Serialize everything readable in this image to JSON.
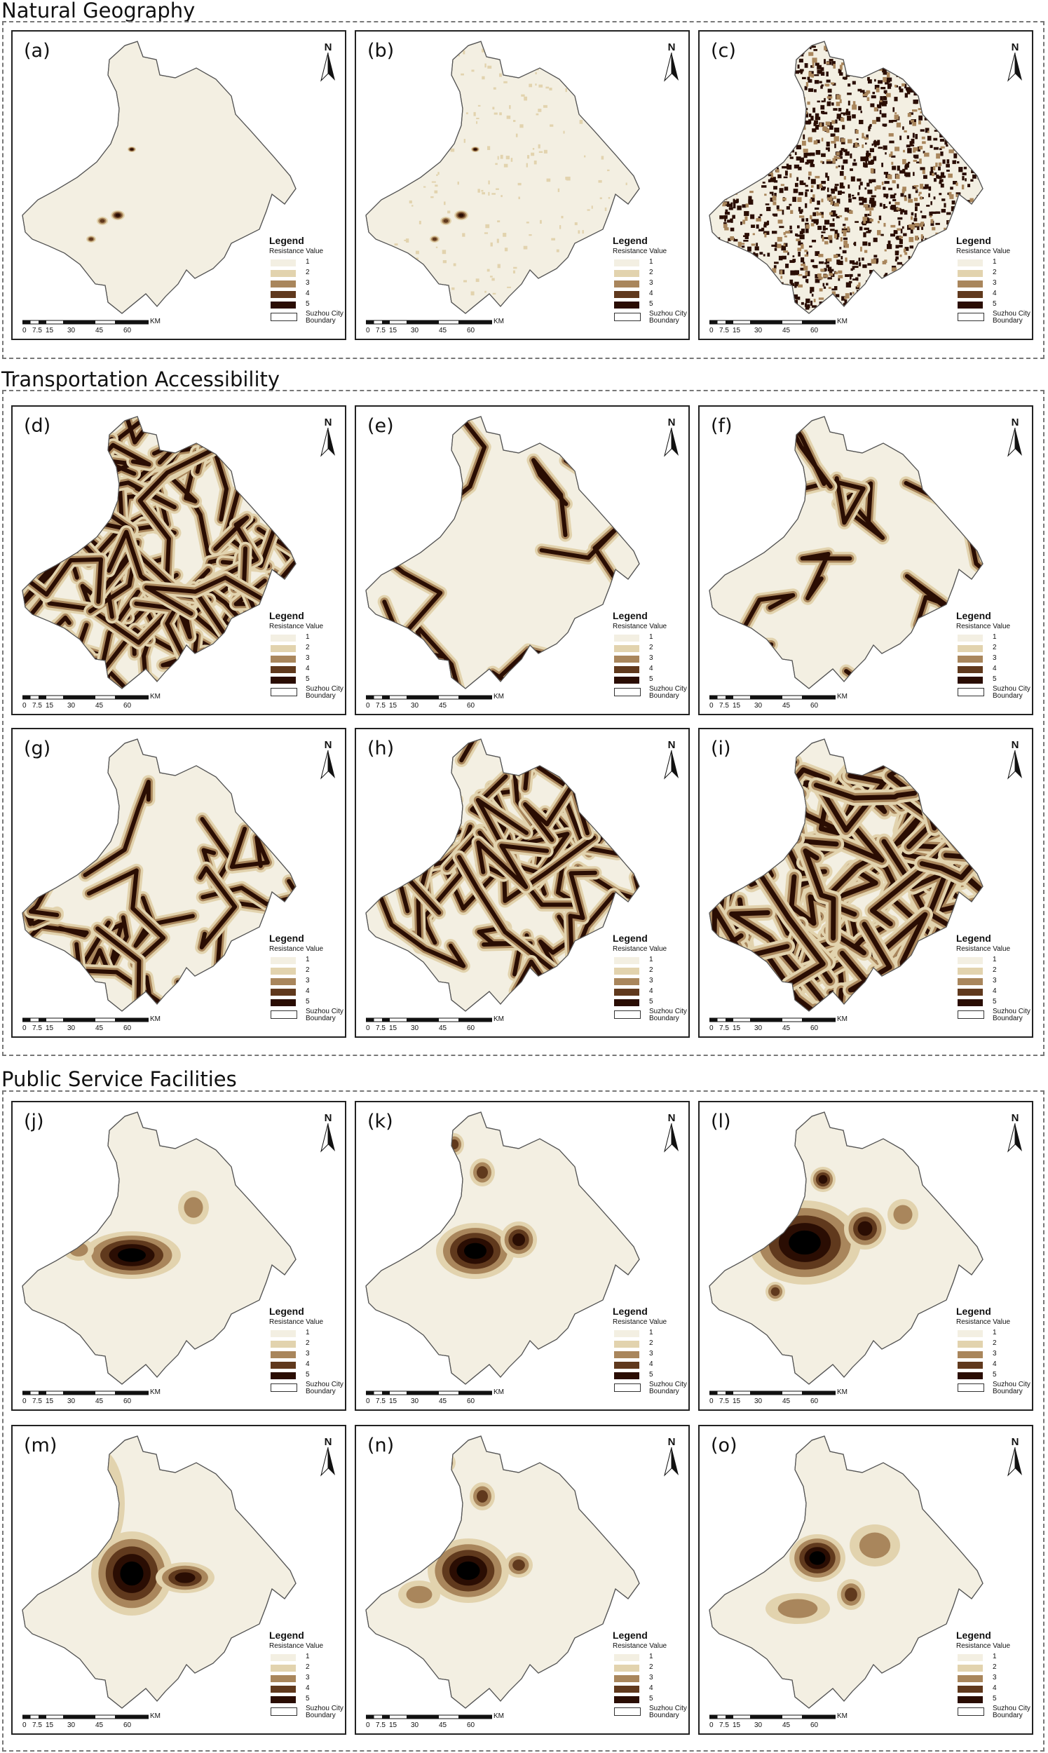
{
  "sections": [
    {
      "title": "Natural Geography",
      "panels": [
        "(a)",
        "(b)",
        "(c)"
      ]
    },
    {
      "title": "Transportation Accessibility",
      "panels": [
        "(d)",
        "(e)",
        "(f)",
        "(g)",
        "(h)",
        "(i)"
      ]
    },
    {
      "title": "Public Service Facilities",
      "panels": [
        "(j)",
        "(k)",
        "(l)",
        "(m)",
        "(n)",
        "(o)"
      ]
    }
  ],
  "legend": {
    "title": "Legend",
    "subtitle": "Resistance Value",
    "classes": [
      "1",
      "2",
      "3",
      "4",
      "5"
    ],
    "boundary_label": "Suzhou City Boundary",
    "colors": [
      "#f3efe2",
      "#e2d3ae",
      "#a9865c",
      "#60391d",
      "#2a0d03"
    ]
  },
  "north_arrow": "N",
  "scale_bar": {
    "ticks": [
      "0",
      "7.5",
      "15",
      "30",
      "45",
      "60"
    ],
    "unit": "KM"
  }
}
